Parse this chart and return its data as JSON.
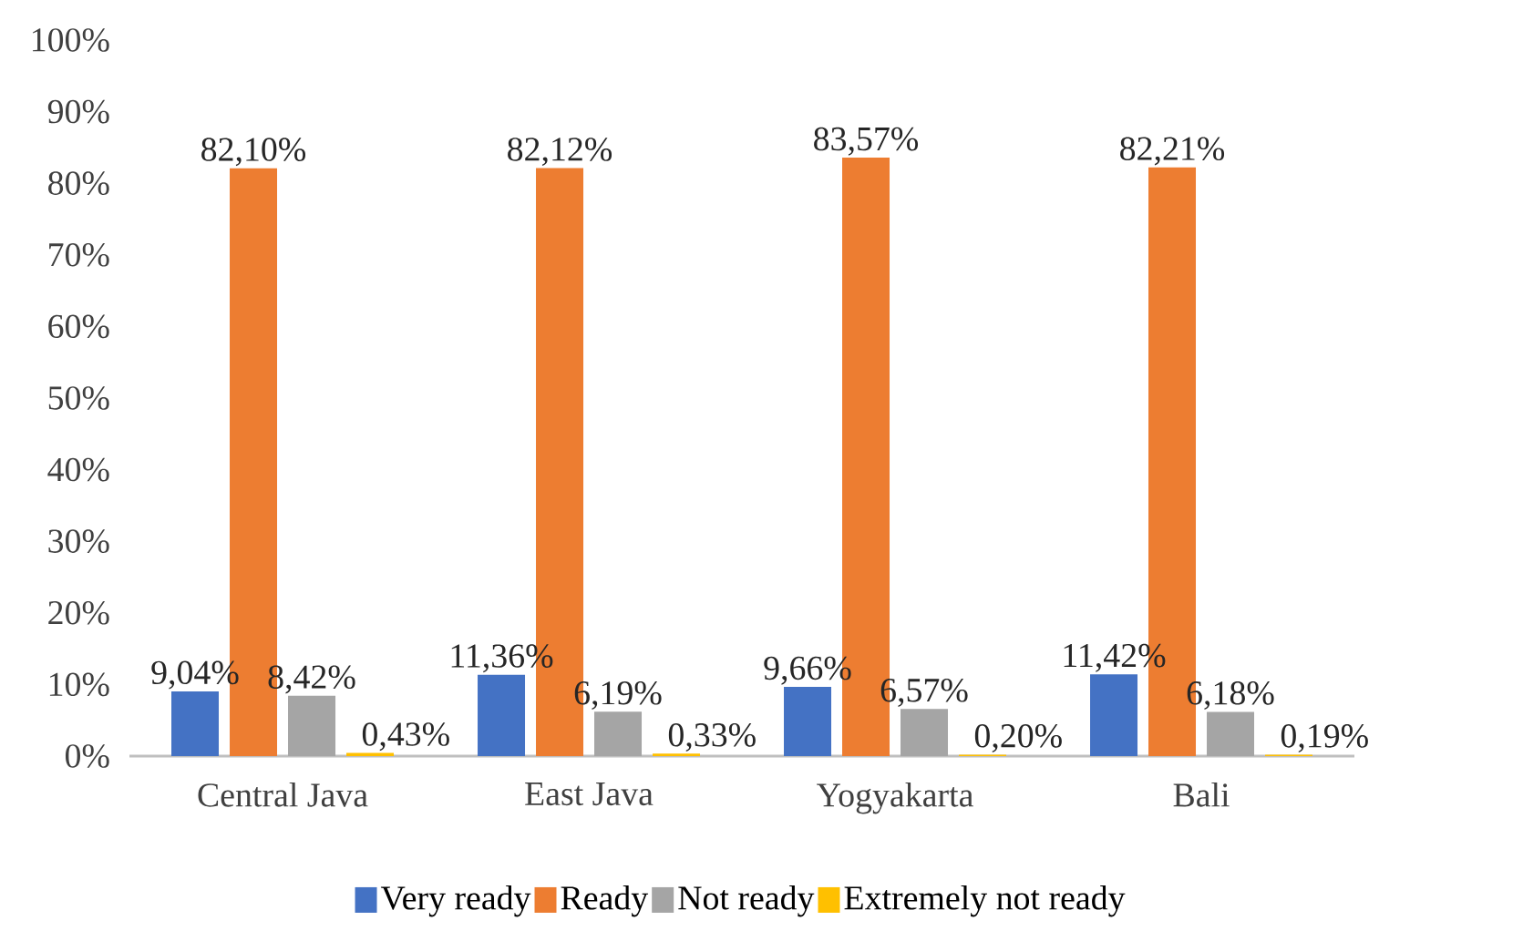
{
  "chart_data": {
    "type": "bar",
    "categories": [
      "Central Java",
      "East Java",
      "Yogyakarta",
      "Bali"
    ],
    "series": [
      {
        "name": "Very ready",
        "color": "#4472c4",
        "values": [
          9.04,
          11.36,
          9.66,
          11.42
        ],
        "value_labels": [
          "9,04%",
          "11,36%",
          "9,66%",
          "11,42%"
        ]
      },
      {
        "name": "Ready",
        "color": "#ed7d31",
        "values": [
          82.1,
          82.12,
          83.57,
          82.21
        ],
        "value_labels": [
          "82,10%",
          "82,12%",
          "83,57%",
          "82,21%"
        ]
      },
      {
        "name": "Not ready",
        "color": "#a5a5a5",
        "values": [
          8.42,
          6.19,
          6.57,
          6.18
        ],
        "value_labels": [
          "8,42%",
          "6,19%",
          "6,57%",
          "6,18%"
        ]
      },
      {
        "name": "Extremely not ready",
        "color": "#ffc000",
        "values": [
          0.43,
          0.33,
          0.2,
          0.19
        ],
        "value_labels": [
          "0,43%",
          "0,33%",
          "0,20%",
          "0,19%"
        ]
      }
    ],
    "ylim": [
      0,
      100
    ],
    "yticks": [
      {
        "value": 0,
        "label": "0%"
      },
      {
        "value": 10,
        "label": "10%"
      },
      {
        "value": 20,
        "label": "20%"
      },
      {
        "value": 30,
        "label": "30%"
      },
      {
        "value": 40,
        "label": "40%"
      },
      {
        "value": 50,
        "label": "50%"
      },
      {
        "value": 60,
        "label": "60%"
      },
      {
        "value": 70,
        "label": "70%"
      },
      {
        "value": 80,
        "label": "80%"
      },
      {
        "value": 90,
        "label": "90%"
      },
      {
        "value": 100,
        "label": "100%"
      }
    ],
    "legend": "bottom"
  }
}
